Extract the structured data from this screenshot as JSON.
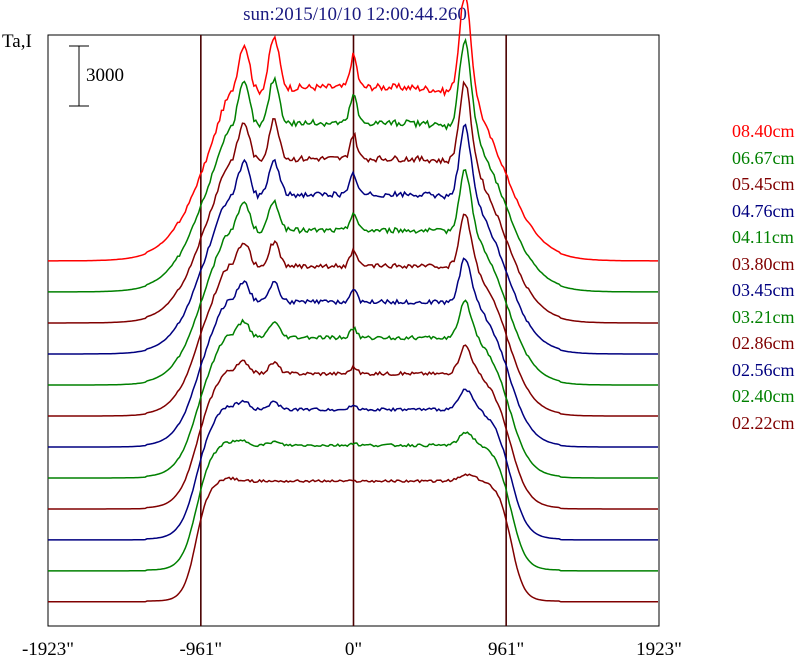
{
  "chart_data": {
    "type": "line",
    "title": "sun:2015/10/10 12:00:44.260",
    "ylabel": "Ta,I",
    "xlabel": "",
    "scale_bar": "3000",
    "xlim": [
      -1923,
      1923
    ],
    "x_ticks": [
      "-1923\"",
      "-961\"",
      "0\"",
      "961\"",
      "1923\""
    ],
    "vertical_markers": [
      -961,
      0,
      961
    ],
    "grid": false,
    "legend_placement": "right",
    "series": [
      {
        "name": "08.40cm",
        "color": "#ff0000"
      },
      {
        "name": "06.67cm",
        "color": "#008000"
      },
      {
        "name": "05.45cm",
        "color": "#800000"
      },
      {
        "name": "04.76cm",
        "color": "#000080"
      },
      {
        "name": "04.11cm",
        "color": "#008000"
      },
      {
        "name": "03.80cm",
        "color": "#800000"
      },
      {
        "name": "03.45cm",
        "color": "#000080"
      },
      {
        "name": "03.21cm",
        "color": "#008000"
      },
      {
        "name": "02.86cm",
        "color": "#800000"
      },
      {
        "name": "02.56cm",
        "color": "#000080"
      },
      {
        "name": "02.40cm",
        "color": "#008000"
      },
      {
        "name": "02.22cm",
        "color": "#800000"
      }
    ]
  }
}
